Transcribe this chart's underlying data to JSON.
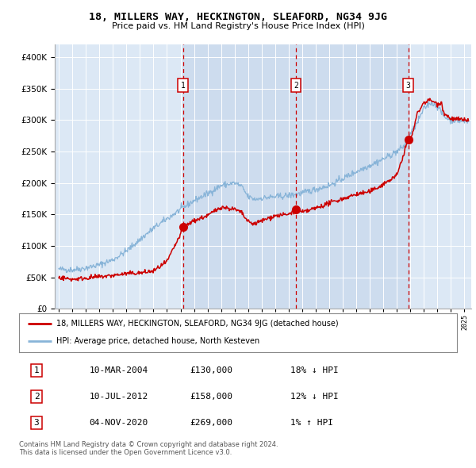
{
  "title": "18, MILLERS WAY, HECKINGTON, SLEAFORD, NG34 9JG",
  "subtitle": "Price paid vs. HM Land Registry's House Price Index (HPI)",
  "plot_bg_color": "#dce8f5",
  "ylim": [
    0,
    420000
  ],
  "yticks": [
    0,
    50000,
    100000,
    150000,
    200000,
    250000,
    300000,
    350000,
    400000
  ],
  "ytick_labels": [
    "£0",
    "£50K",
    "£100K",
    "£150K",
    "£200K",
    "£250K",
    "£300K",
    "£350K",
    "£400K"
  ],
  "xlim_start": 1994.7,
  "xlim_end": 2025.5,
  "sale_dates": [
    2004.19,
    2012.53,
    2020.84
  ],
  "sale_prices": [
    130000,
    158000,
    269000
  ],
  "sale_labels": [
    "1",
    "2",
    "3"
  ],
  "legend_line1": "18, MILLERS WAY, HECKINGTON, SLEAFORD, NG34 9JG (detached house)",
  "legend_line2": "HPI: Average price, detached house, North Kesteven",
  "table_data": [
    [
      "1",
      "10-MAR-2004",
      "£130,000",
      "18% ↓ HPI"
    ],
    [
      "2",
      "10-JUL-2012",
      "£158,000",
      "12% ↓ HPI"
    ],
    [
      "3",
      "04-NOV-2020",
      "£269,000",
      "1% ↑ HPI"
    ]
  ],
  "footnote1": "Contains HM Land Registry data © Crown copyright and database right 2024.",
  "footnote2": "This data is licensed under the Open Government Licence v3.0.",
  "red_color": "#cc0000",
  "hpi_color": "#88b4d8",
  "span_color": "#cddcee"
}
